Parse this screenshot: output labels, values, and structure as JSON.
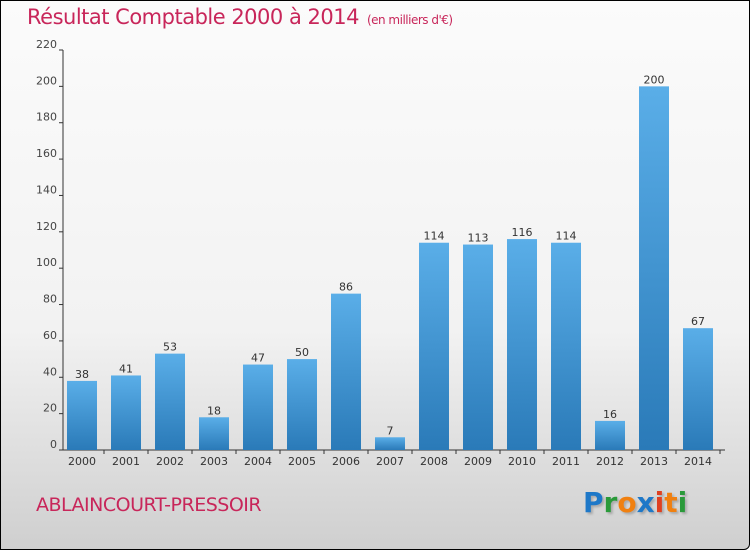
{
  "title": "Résultat Comptable 2000 à 2014",
  "subtitle": "(en milliers d'€)",
  "commune": "ABLAINCOURT-PRESSOIR",
  "logo": {
    "text": "Proxiti",
    "letters": [
      "P",
      "r",
      "o",
      "x",
      "i",
      "t",
      "i"
    ],
    "colors": [
      "#1e78c8",
      "#2a9a3a",
      "#f08010",
      "#1e78c8",
      "#e04020",
      "#f08010",
      "#2a9a3a"
    ]
  },
  "chart_data": {
    "type": "bar",
    "title": "Résultat Comptable 2000 à 2014",
    "ylabel": "(en milliers d'€)",
    "categories": [
      "2000",
      "2001",
      "2002",
      "2003",
      "2004",
      "2005",
      "2006",
      "2007",
      "2008",
      "2009",
      "2010",
      "2011",
      "2012",
      "2013",
      "2014"
    ],
    "values": [
      38,
      41,
      53,
      18,
      47,
      50,
      86,
      7,
      114,
      113,
      116,
      114,
      16,
      200,
      67
    ],
    "ylim": [
      0,
      220
    ],
    "yticks": [
      0,
      20,
      40,
      60,
      80,
      100,
      120,
      140,
      160,
      180,
      200,
      220
    ],
    "bar_color_top": "#5aaee8",
    "bar_color_bottom": "#2a7ab8",
    "grid": false
  }
}
